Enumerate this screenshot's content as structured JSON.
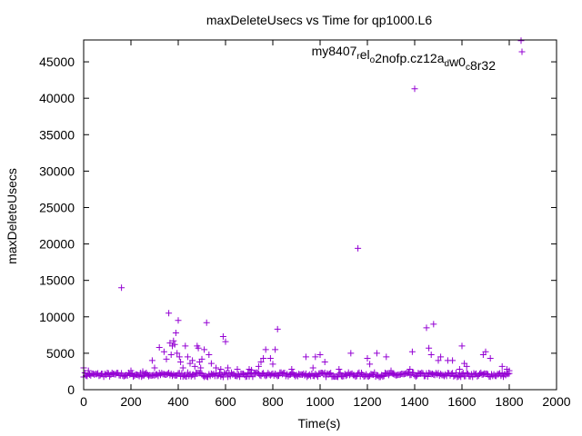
{
  "chart_data": {
    "type": "scatter",
    "title": "maxDeleteUsecs vs Time for qp1000.L6",
    "xlabel": "Time(s)",
    "ylabel": "maxDeleteUsecs",
    "xlim": [
      0,
      2000
    ],
    "ylim": [
      0,
      48000
    ],
    "xticks": [
      0,
      200,
      400,
      600,
      800,
      1000,
      1200,
      1400,
      1600,
      1800,
      2000
    ],
    "yticks": [
      0,
      5000,
      10000,
      15000,
      20000,
      25000,
      30000,
      35000,
      40000,
      45000
    ],
    "grid": false,
    "legend_position": "top-right",
    "marker": "+",
    "colors": {
      "series": "#9400d3",
      "axis": "#000000",
      "background": "#ffffff"
    },
    "series": [
      {
        "name": "my8407_r el_o 2nofp.cz12a_d w0_c 8r32",
        "name_parts": [
          {
            "text": "my8407",
            "sub": false
          },
          {
            "text": "r",
            "sub": true
          },
          {
            "text": "el",
            "sub": false
          },
          {
            "text": "o",
            "sub": true
          },
          {
            "text": "2nofp.cz12a",
            "sub": false
          },
          {
            "text": "d",
            "sub": true
          },
          {
            "text": "w0",
            "sub": false
          },
          {
            "text": "c",
            "sub": true
          },
          {
            "text": "8r32",
            "sub": false
          }
        ],
        "baseline": {
          "x_start": 0,
          "x_end": 1800,
          "x_step": 5,
          "y_min": 1750,
          "y_max": 2350
        },
        "points": [
          [
            0,
            3000
          ],
          [
            20,
            2600
          ],
          [
            160,
            14000
          ],
          [
            200,
            2600
          ],
          [
            250,
            2500
          ],
          [
            290,
            4000
          ],
          [
            300,
            3000
          ],
          [
            320,
            5800
          ],
          [
            340,
            5200
          ],
          [
            350,
            4200
          ],
          [
            360,
            10500
          ],
          [
            365,
            6400
          ],
          [
            370,
            4800
          ],
          [
            375,
            6000
          ],
          [
            380,
            6700
          ],
          [
            385,
            6200
          ],
          [
            390,
            7800
          ],
          [
            395,
            5000
          ],
          [
            400,
            9500
          ],
          [
            405,
            4500
          ],
          [
            410,
            3800
          ],
          [
            420,
            3000
          ],
          [
            430,
            6000
          ],
          [
            440,
            4500
          ],
          [
            450,
            3600
          ],
          [
            460,
            4000
          ],
          [
            470,
            3200
          ],
          [
            480,
            6000
          ],
          [
            485,
            5700
          ],
          [
            490,
            3800
          ],
          [
            495,
            3000
          ],
          [
            500,
            4200
          ],
          [
            510,
            5500
          ],
          [
            520,
            9200
          ],
          [
            530,
            4800
          ],
          [
            540,
            3600
          ],
          [
            560,
            3000
          ],
          [
            580,
            2800
          ],
          [
            590,
            7300
          ],
          [
            600,
            6600
          ],
          [
            610,
            3000
          ],
          [
            650,
            2800
          ],
          [
            700,
            2800
          ],
          [
            710,
            2700
          ],
          [
            740,
            3200
          ],
          [
            750,
            3800
          ],
          [
            760,
            4300
          ],
          [
            770,
            5500
          ],
          [
            790,
            4300
          ],
          [
            800,
            3500
          ],
          [
            810,
            5500
          ],
          [
            820,
            8300
          ],
          [
            880,
            2800
          ],
          [
            940,
            4500
          ],
          [
            970,
            3000
          ],
          [
            980,
            4500
          ],
          [
            1000,
            4800
          ],
          [
            1020,
            3800
          ],
          [
            1080,
            2800
          ],
          [
            1130,
            5000
          ],
          [
            1160,
            19400
          ],
          [
            1200,
            4300
          ],
          [
            1210,
            3500
          ],
          [
            1240,
            5000
          ],
          [
            1280,
            4500
          ],
          [
            1300,
            2600
          ],
          [
            1380,
            2800
          ],
          [
            1390,
            5200
          ],
          [
            1400,
            41300
          ],
          [
            1450,
            8500
          ],
          [
            1460,
            5700
          ],
          [
            1470,
            4800
          ],
          [
            1480,
            9000
          ],
          [
            1500,
            4000
          ],
          [
            1510,
            4500
          ],
          [
            1540,
            4000
          ],
          [
            1560,
            4000
          ],
          [
            1590,
            2800
          ],
          [
            1600,
            6000
          ],
          [
            1610,
            3600
          ],
          [
            1620,
            3200
          ],
          [
            1690,
            4800
          ],
          [
            1700,
            5200
          ],
          [
            1720,
            4300
          ],
          [
            1770,
            3200
          ],
          [
            1790,
            2800
          ],
          [
            1800,
            2600
          ],
          [
            1850,
            47900
          ]
        ]
      }
    ]
  }
}
